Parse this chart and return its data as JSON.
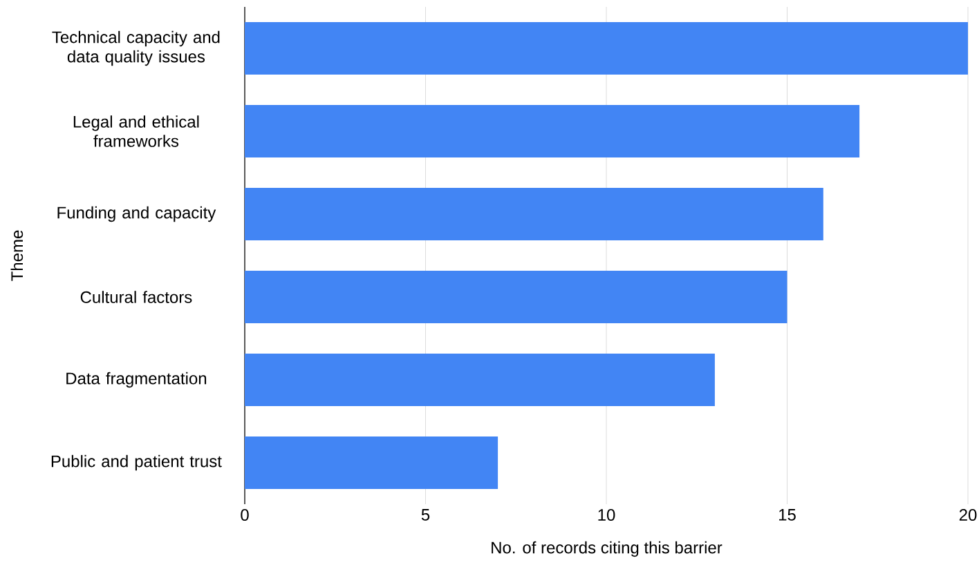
{
  "chart_data": {
    "type": "bar",
    "orientation": "horizontal",
    "xlabel": "No. of records citing this barrier",
    "ylabel": "Theme",
    "categories": [
      "Technical capacity and data quality issues",
      "Legal and ethical frameworks",
      "Funding and capacity",
      "Cultural factors",
      "Data fragmentation",
      "Public and patient trust"
    ],
    "values": [
      20,
      17,
      16,
      15,
      13,
      7
    ],
    "color": "#4285f4",
    "xlim": [
      0,
      20
    ],
    "xticks": [
      0,
      5,
      10,
      15,
      20
    ],
    "grid": "x"
  }
}
